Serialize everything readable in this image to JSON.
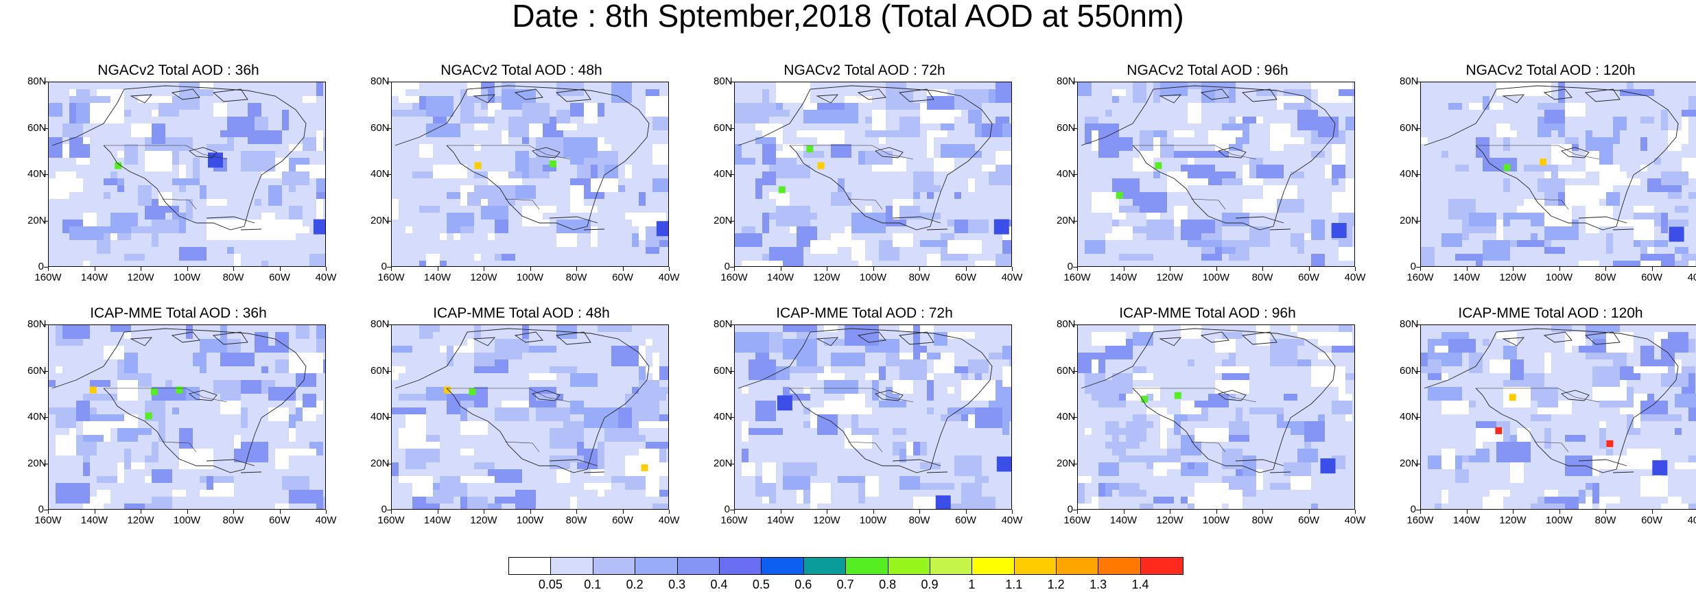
{
  "title": "Date : 8th Sptember,2018 (Total AOD at 550nm)",
  "panels": [
    {
      "title": "NGACv2 Total AOD : 36h",
      "hotspots": [
        [
          "green",
          0.25,
          0.45
        ],
        [
          "blue",
          0.6,
          0.42
        ],
        [
          "blue",
          0.98,
          0.78
        ]
      ]
    },
    {
      "title": "NGACv2 Total AOD : 48h",
      "hotspots": [
        [
          "yellow",
          0.31,
          0.45
        ],
        [
          "green",
          0.58,
          0.44
        ],
        [
          "blue",
          0.98,
          0.79
        ]
      ]
    },
    {
      "title": "NGACv2 Total AOD : 72h",
      "hotspots": [
        [
          "yellow",
          0.31,
          0.45
        ],
        [
          "green",
          0.17,
          0.58
        ],
        [
          "green",
          0.27,
          0.36
        ],
        [
          "blue",
          0.96,
          0.78
        ]
      ]
    },
    {
      "title": "NGACv2 Total AOD : 96h",
      "hotspots": [
        [
          "green",
          0.29,
          0.45
        ],
        [
          "green",
          0.15,
          0.61
        ],
        [
          "blue",
          0.94,
          0.8
        ]
      ]
    },
    {
      "title": "NGACv2 Total AOD : 120h",
      "hotspots": [
        [
          "yellow",
          0.44,
          0.43
        ],
        [
          "green",
          0.31,
          0.46
        ],
        [
          "blue",
          0.92,
          0.82
        ]
      ]
    }
  ],
  "panels_icap": [
    {
      "title": "ICAP-MME Total AOD : 36h",
      "hotspots": [
        [
          "yellow",
          0.16,
          0.35
        ],
        [
          "green",
          0.47,
          0.35
        ],
        [
          "green",
          0.38,
          0.36
        ],
        [
          "green",
          0.36,
          0.49
        ]
      ]
    },
    {
      "title": "ICAP-MME Total AOD : 48h",
      "hotspots": [
        [
          "yellow",
          0.2,
          0.35
        ],
        [
          "green",
          0.29,
          0.36
        ],
        [
          "yellow",
          0.91,
          0.77
        ]
      ]
    },
    {
      "title": "ICAP-MME Total AOD : 72h",
      "hotspots": [
        [
          "blue",
          0.18,
          0.42
        ],
        [
          "blue",
          0.97,
          0.75
        ],
        [
          "blue",
          0.75,
          0.96
        ]
      ]
    },
    {
      "title": "ICAP-MME Total AOD : 96h",
      "hotspots": [
        [
          "green",
          0.24,
          0.4
        ],
        [
          "green",
          0.36,
          0.38
        ],
        [
          "blue",
          0.9,
          0.76
        ]
      ]
    },
    {
      "title": "ICAP-MME Total AOD : 120h",
      "hotspots": [
        [
          "yellow",
          0.33,
          0.39
        ],
        [
          "red",
          0.28,
          0.57
        ],
        [
          "red",
          0.68,
          0.64
        ],
        [
          "blue",
          0.86,
          0.77
        ]
      ]
    }
  ],
  "y_ticks": [
    "80N",
    "60N",
    "40N",
    "20N",
    "0"
  ],
  "x_ticks": [
    "160W",
    "140W",
    "120W",
    "100W",
    "80W",
    "60W",
    "40W"
  ],
  "colorbar": {
    "colors": [
      "#ffffff",
      "#d6dcfb",
      "#b3bff9",
      "#99acf9",
      "#8595f5",
      "#6a6ef2",
      "#0c5ff0",
      "#0a9b9b",
      "#55ee22",
      "#96f51a",
      "#c5f548",
      "#ffff00",
      "#ffcc00",
      "#ffa500",
      "#ff7900",
      "#ff2a1c"
    ],
    "labels": [
      "0.05",
      "0.1",
      "0.2",
      "0.3",
      "0.4",
      "0.5",
      "0.6",
      "0.7",
      "0.8",
      "0.9",
      "1",
      "1.1",
      "1.2",
      "1.3",
      "1.4"
    ]
  }
}
